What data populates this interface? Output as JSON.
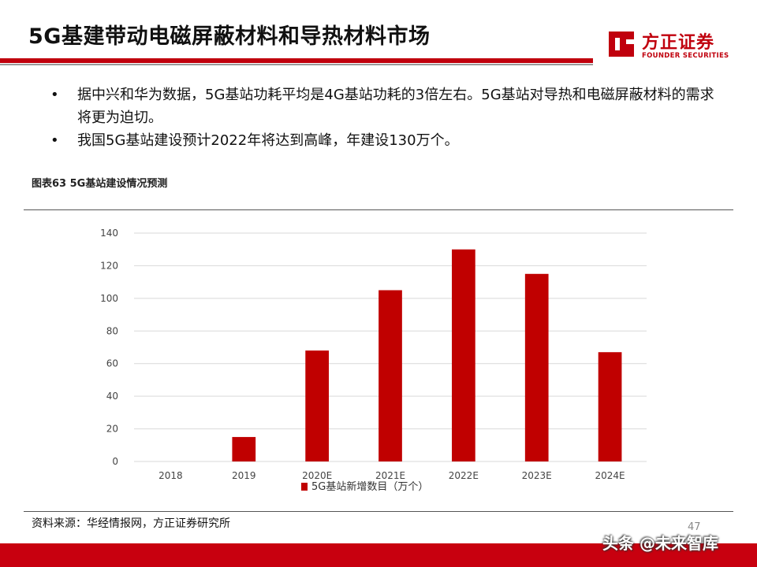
{
  "page": {
    "title": "5G基建带动电磁屏蔽材料和导热材料市场",
    "logo": {
      "cn": "方正证券",
      "en": "FOUNDER SECURITIES"
    },
    "bullets": [
      "据中兴和华为数据，5G基站功耗平均是4G基站功耗的3倍左右。5G基站对导热和电磁屏蔽材料的需求将更为迫切。",
      "我国5G基站建设预计2022年将达到高峰，年建设130万个。"
    ],
    "bullet_symbol": "•",
    "figure_caption": "图表63 5G基站建设情况预测",
    "source": "资料来源：华经情报网，方正证券研究所",
    "page_number": "47",
    "watermark": "头条 @未来智库",
    "colors": {
      "accent": "#c0000d",
      "bar": "#c00000"
    }
  },
  "chart_data": {
    "type": "bar",
    "categories": [
      "2018",
      "2019",
      "2020E",
      "2021E",
      "2022E",
      "2023E",
      "2024E"
    ],
    "series": [
      {
        "name": "5G基站新增数目（万个）",
        "values": [
          0,
          15,
          68,
          105,
          130,
          115,
          67
        ]
      }
    ],
    "ylim": [
      0,
      140
    ],
    "yticks": [
      0,
      20,
      40,
      60,
      80,
      100,
      120,
      140
    ],
    "grid": true,
    "legend": "bottom"
  }
}
